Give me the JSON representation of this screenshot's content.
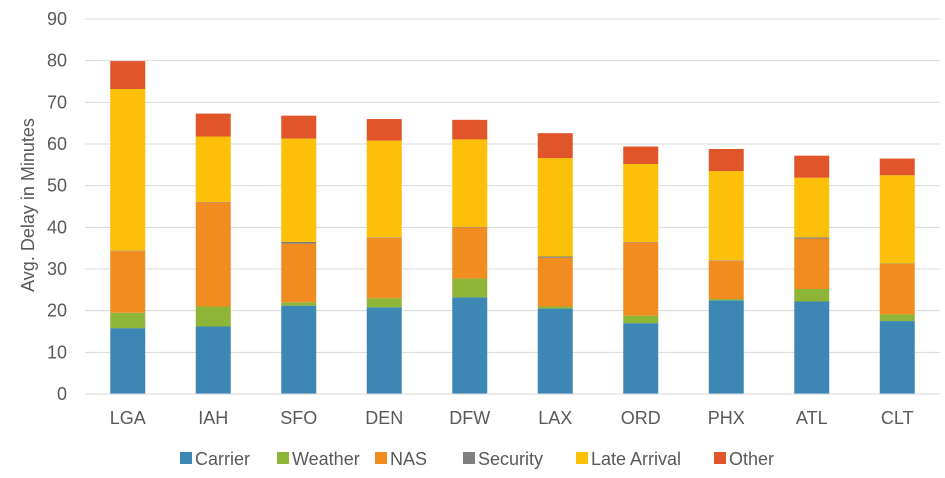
{
  "chart_data": {
    "type": "bar",
    "stacked": true,
    "title": "",
    "xlabel": "",
    "ylabel": "Avg. Delay in Minutes",
    "ylim": [
      0,
      90
    ],
    "yticks": [
      0,
      10,
      20,
      30,
      40,
      50,
      60,
      70,
      80,
      90
    ],
    "grid": true,
    "legend_position": "bottom",
    "categories": [
      "LGA",
      "IAH",
      "SFO",
      "DEN",
      "DFW",
      "LAX",
      "ORD",
      "PHX",
      "ATL",
      "CLT"
    ],
    "series": [
      {
        "name": "Carrier",
        "color": "#3d87b4",
        "values": [
          15.8,
          16.2,
          21.2,
          20.8,
          23.2,
          20.5,
          17.0,
          22.5,
          22.2,
          17.5
        ]
      },
      {
        "name": "Weather",
        "color": "#8db537",
        "values": [
          3.7,
          4.8,
          0.8,
          2.2,
          4.5,
          0.5,
          1.8,
          0.3,
          3.0,
          1.6
        ]
      },
      {
        "name": "NAS",
        "color": "#f18c21",
        "values": [
          14.8,
          25.0,
          14.1,
          14.5,
          12.3,
          11.7,
          17.6,
          9.2,
          12.1,
          12.1
        ]
      },
      {
        "name": "Security",
        "color": "#7f7f7f",
        "values": [
          0.1,
          0.1,
          0.4,
          0.1,
          0.1,
          0.3,
          0.1,
          0.1,
          0.3,
          0.1
        ]
      },
      {
        "name": "Late Arrival",
        "color": "#fbc007",
        "values": [
          38.8,
          15.7,
          24.8,
          23.2,
          21.0,
          23.6,
          18.7,
          21.4,
          14.3,
          21.2
        ]
      },
      {
        "name": "Other",
        "color": "#e0562a",
        "values": [
          6.7,
          5.5,
          5.5,
          5.2,
          4.7,
          6.0,
          4.2,
          5.3,
          5.3,
          4.0
        ]
      }
    ]
  }
}
